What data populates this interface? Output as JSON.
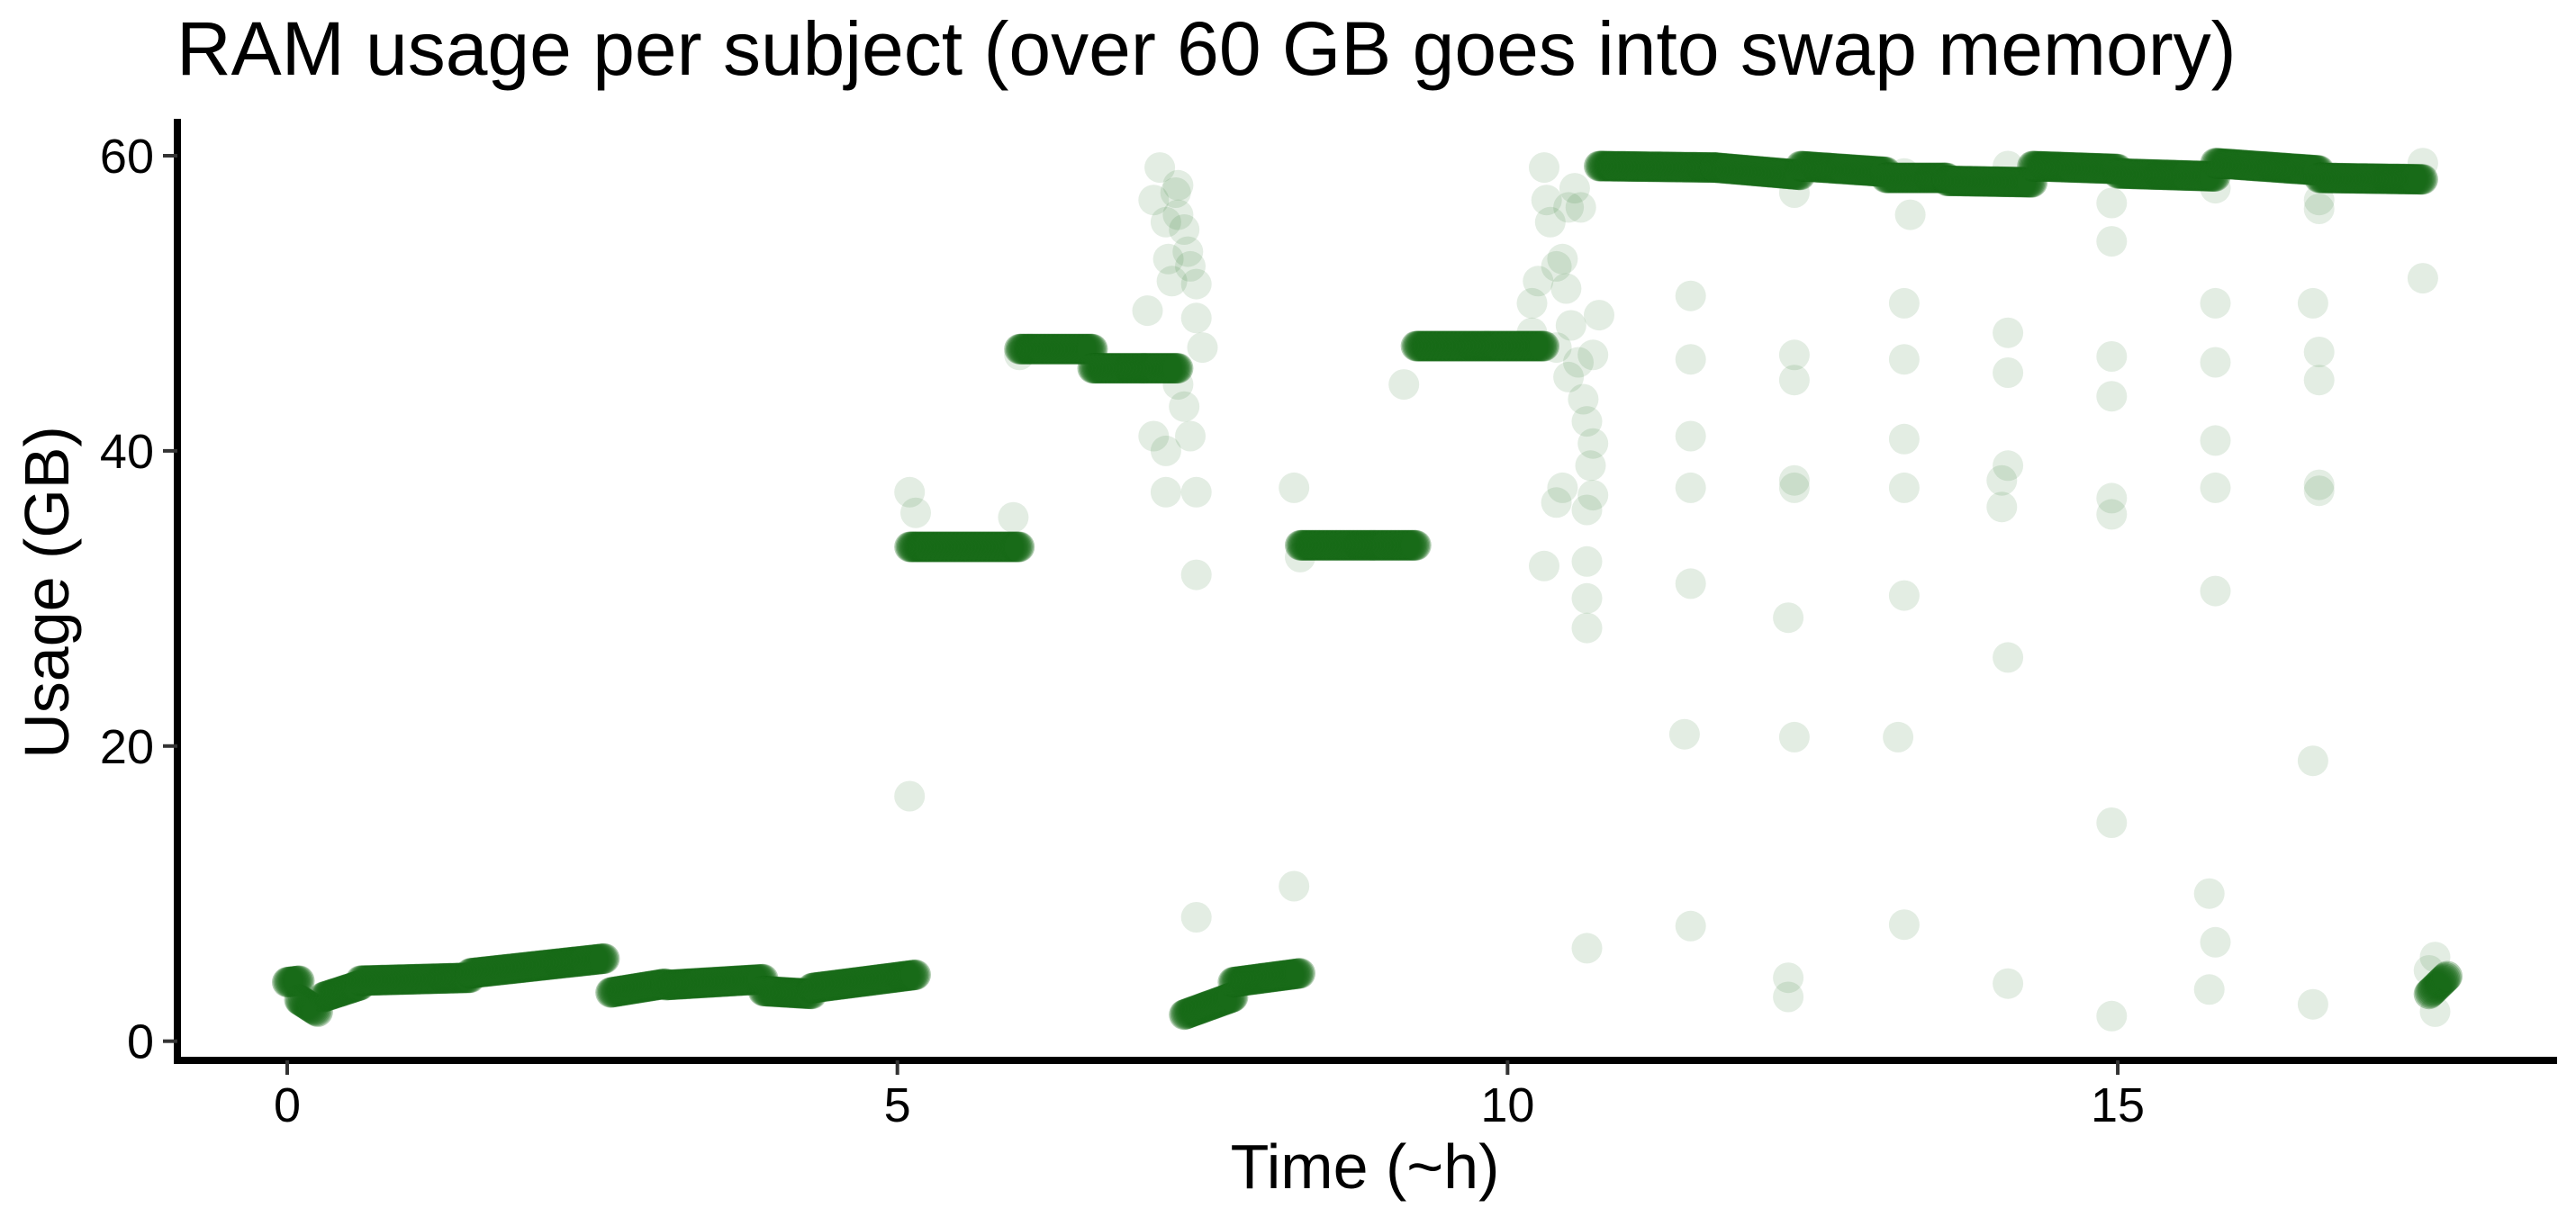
{
  "chart_data": {
    "type": "scatter",
    "title": "RAM usage per subject (over 60 GB goes into swap memory)",
    "xlabel": "Time (~h)",
    "ylabel": "Usage (GB)",
    "xlim": [
      -0.9,
      18.6
    ],
    "ylim": [
      -1.3,
      62.5
    ],
    "xticks": [
      0,
      5,
      10,
      15
    ],
    "yticks": [
      0,
      20,
      40,
      60
    ],
    "grid": false,
    "legend": "none",
    "point_color": "#1a6b1a",
    "point_opacity": 0.12,
    "series": [
      {
        "segments": [
          {
            "x0": 0.0,
            "x1": 0.1,
            "y0": 4.0,
            "y1": 4.1
          },
          {
            "x0": 0.1,
            "x1": 0.25,
            "y0": 2.8,
            "y1": 2.0
          },
          {
            "x0": 0.3,
            "x1": 0.6,
            "y0": 3.0,
            "y1": 3.8
          },
          {
            "x0": 0.6,
            "x1": 1.5,
            "y0": 4.1,
            "y1": 4.3
          },
          {
            "x0": 1.5,
            "x1": 2.6,
            "y0": 4.6,
            "y1": 5.6
          },
          {
            "x0": 2.65,
            "x1": 3.1,
            "y0": 3.3,
            "y1": 3.9
          },
          {
            "x0": 3.1,
            "x1": 3.9,
            "y0": 3.8,
            "y1": 4.2
          },
          {
            "x0": 3.9,
            "x1": 4.3,
            "y0": 3.4,
            "y1": 3.2
          },
          {
            "x0": 4.3,
            "x1": 5.15,
            "y0": 3.6,
            "y1": 4.5
          },
          {
            "x0": 5.1,
            "x1": 6.0,
            "y0": 33.5,
            "y1": 33.5
          },
          {
            "x0": 6.0,
            "x1": 6.6,
            "y0": 46.9,
            "y1": 46.9
          },
          {
            "x0": 6.6,
            "x1": 7.3,
            "y0": 45.6,
            "y1": 45.6
          },
          {
            "x0": 7.35,
            "x1": 7.75,
            "y0": 1.8,
            "y1": 3.0
          },
          {
            "x0": 7.75,
            "x1": 8.3,
            "y0": 4.0,
            "y1": 4.6
          },
          {
            "x0": 8.3,
            "x1": 9.25,
            "y0": 33.6,
            "y1": 33.6
          },
          {
            "x0": 9.25,
            "x1": 10.3,
            "y0": 47.1,
            "y1": 47.1
          },
          {
            "x0": 10.75,
            "x1": 11.7,
            "y0": 59.3,
            "y1": 59.2
          },
          {
            "x0": 11.7,
            "x1": 12.4,
            "y0": 59.2,
            "y1": 58.7
          },
          {
            "x0": 12.4,
            "x1": 13.1,
            "y0": 59.3,
            "y1": 58.9
          },
          {
            "x0": 13.1,
            "x1": 13.6,
            "y0": 58.5,
            "y1": 58.5
          },
          {
            "x0": 13.6,
            "x1": 14.3,
            "y0": 58.3,
            "y1": 58.2
          },
          {
            "x0": 14.3,
            "x1": 15.0,
            "y0": 59.3,
            "y1": 59.1
          },
          {
            "x0": 15.0,
            "x1": 15.8,
            "y0": 58.8,
            "y1": 58.6
          },
          {
            "x0": 15.8,
            "x1": 16.65,
            "y0": 59.5,
            "y1": 59.0
          },
          {
            "x0": 16.65,
            "x1": 17.5,
            "y0": 58.5,
            "y1": 58.4
          },
          {
            "x0": 17.55,
            "x1": 17.7,
            "y0": 3.2,
            "y1": 4.4
          }
        ],
        "sparse_points": [
          [
            5.1,
            16.6
          ],
          [
            5.1,
            37.2
          ],
          [
            5.15,
            35.8
          ],
          [
            5.95,
            35.5
          ],
          [
            6.0,
            46.5
          ],
          [
            7.05,
            49.5
          ],
          [
            7.1,
            57.0
          ],
          [
            7.15,
            59.2
          ],
          [
            7.2,
            55.5
          ],
          [
            7.22,
            53.0
          ],
          [
            7.25,
            51.5
          ],
          [
            7.28,
            57.5
          ],
          [
            7.3,
            58.0
          ],
          [
            7.3,
            56.0
          ],
          [
            7.35,
            55.0
          ],
          [
            7.38,
            53.5
          ],
          [
            7.4,
            52.5
          ],
          [
            7.45,
            51.3
          ],
          [
            7.45,
            49.0
          ],
          [
            7.5,
            47.0
          ],
          [
            7.3,
            44.5
          ],
          [
            7.35,
            43.0
          ],
          [
            7.4,
            41.0
          ],
          [
            7.1,
            41.0
          ],
          [
            7.2,
            37.2
          ],
          [
            7.45,
            37.2
          ],
          [
            7.45,
            31.6
          ],
          [
            7.45,
            8.4
          ],
          [
            7.2,
            40.0
          ],
          [
            8.25,
            37.5
          ],
          [
            8.25,
            10.5
          ],
          [
            8.3,
            32.8
          ],
          [
            9.15,
            44.5
          ],
          [
            10.2,
            50.0
          ],
          [
            10.2,
            48.0
          ],
          [
            10.25,
            51.5
          ],
          [
            10.3,
            59.2
          ],
          [
            10.32,
            57.0
          ],
          [
            10.35,
            55.5
          ],
          [
            10.4,
            52.5
          ],
          [
            10.45,
            53.0
          ],
          [
            10.5,
            56.5
          ],
          [
            10.55,
            57.8
          ],
          [
            10.6,
            56.5
          ],
          [
            10.48,
            51.0
          ],
          [
            10.52,
            48.5
          ],
          [
            10.58,
            46.0
          ],
          [
            10.62,
            43.5
          ],
          [
            10.65,
            42.0
          ],
          [
            10.7,
            40.5
          ],
          [
            10.68,
            39.0
          ],
          [
            10.7,
            37.0
          ],
          [
            10.65,
            36.0
          ],
          [
            10.4,
            36.5
          ],
          [
            10.45,
            37.5
          ],
          [
            10.3,
            32.2
          ],
          [
            10.65,
            32.5
          ],
          [
            10.65,
            30.0
          ],
          [
            10.65,
            28.0
          ],
          [
            10.7,
            46.5
          ],
          [
            10.75,
            49.2
          ],
          [
            10.4,
            47.0
          ],
          [
            10.5,
            45.0
          ],
          [
            10.65,
            6.3
          ],
          [
            11.5,
            50.5
          ],
          [
            11.5,
            46.2
          ],
          [
            11.5,
            41.0
          ],
          [
            11.5,
            37.5
          ],
          [
            11.5,
            31.0
          ],
          [
            11.45,
            20.8
          ],
          [
            11.5,
            7.8
          ],
          [
            12.35,
            57.5
          ],
          [
            12.35,
            46.5
          ],
          [
            12.35,
            44.8
          ],
          [
            12.35,
            38.0
          ],
          [
            12.35,
            37.5
          ],
          [
            12.3,
            28.7
          ],
          [
            12.35,
            20.6
          ],
          [
            12.3,
            4.3
          ],
          [
            12.3,
            3.0
          ],
          [
            13.25,
            58.8
          ],
          [
            13.3,
            56.0
          ],
          [
            13.25,
            50.0
          ],
          [
            13.25,
            46.2
          ],
          [
            13.25,
            40.8
          ],
          [
            13.25,
            37.5
          ],
          [
            13.25,
            30.2
          ],
          [
            13.2,
            20.6
          ],
          [
            13.25,
            7.9
          ],
          [
            14.1,
            59.3
          ],
          [
            14.1,
            48.0
          ],
          [
            14.1,
            45.3
          ],
          [
            14.1,
            39.0
          ],
          [
            14.05,
            38.0
          ],
          [
            14.05,
            36.2
          ],
          [
            14.1,
            26.0
          ],
          [
            14.1,
            3.9
          ],
          [
            14.95,
            56.8
          ],
          [
            14.95,
            54.2
          ],
          [
            14.95,
            46.4
          ],
          [
            14.95,
            43.7
          ],
          [
            14.95,
            36.8
          ],
          [
            14.95,
            35.7
          ],
          [
            14.95,
            14.8
          ],
          [
            14.95,
            1.7
          ],
          [
            15.8,
            57.8
          ],
          [
            15.8,
            50.0
          ],
          [
            15.8,
            46.0
          ],
          [
            15.8,
            40.7
          ],
          [
            15.8,
            37.5
          ],
          [
            15.8,
            30.5
          ],
          [
            15.75,
            10.0
          ],
          [
            15.8,
            6.7
          ],
          [
            15.75,
            3.5
          ],
          [
            16.65,
            57.0
          ],
          [
            16.65,
            56.4
          ],
          [
            16.6,
            50.0
          ],
          [
            16.65,
            46.7
          ],
          [
            16.65,
            44.8
          ],
          [
            16.65,
            37.7
          ],
          [
            16.65,
            37.3
          ],
          [
            16.6,
            19.0
          ],
          [
            16.6,
            2.5
          ],
          [
            17.5,
            59.5
          ],
          [
            17.5,
            51.7
          ],
          [
            17.6,
            5.7
          ],
          [
            17.6,
            2.0
          ],
          [
            17.55,
            4.8
          ]
        ]
      }
    ]
  }
}
